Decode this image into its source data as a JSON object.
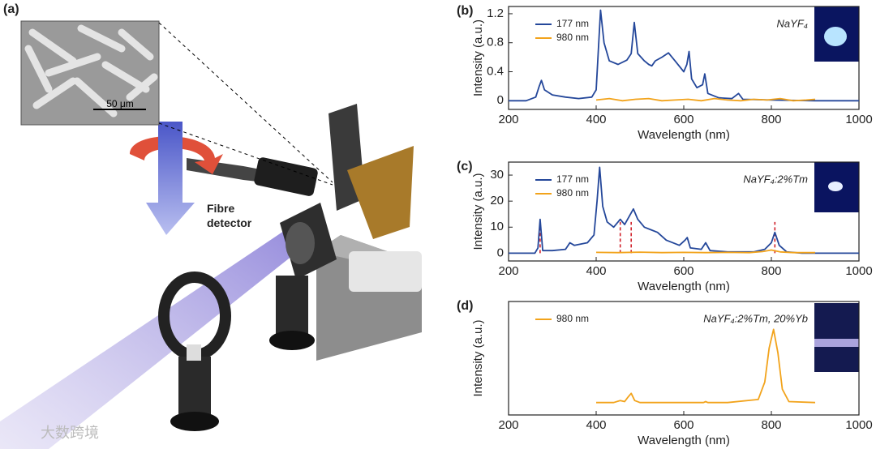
{
  "panel_a": {
    "panel_label": "(a)",
    "annotation": "Fibre detector",
    "scale_bar": "50 μm"
  },
  "watermark": "大数跨境",
  "chart_data": [
    {
      "type": "line",
      "panel_label": "(b)",
      "annotation": "NaYF₄",
      "xlabel": "Wavelength (nm)",
      "ylabel": "Intensity (a.u.)",
      "xlim": [
        200,
        1000
      ],
      "xticks": [
        200,
        400,
        600,
        800,
        1000
      ],
      "ylim": [
        -0.12,
        1.3
      ],
      "yticks": [
        0,
        0.4,
        0.8,
        1.2
      ],
      "series": [
        {
          "name": "177 nm",
          "color": "#24479a",
          "x": [
            200,
            240,
            262,
            270,
            275,
            282,
            300,
            330,
            360,
            390,
            400,
            405,
            410,
            418,
            430,
            450,
            470,
            480,
            487,
            495,
            510,
            520,
            527,
            535,
            550,
            565,
            580,
            600,
            607,
            612,
            618,
            630,
            643,
            648,
            655,
            680,
            710,
            725,
            735,
            800,
            900,
            1000
          ],
          "values": [
            0,
            0.0,
            0.05,
            0.2,
            0.28,
            0.15,
            0.08,
            0.05,
            0.03,
            0.05,
            0.15,
            0.7,
            1.25,
            0.8,
            0.55,
            0.5,
            0.56,
            0.65,
            1.08,
            0.65,
            0.55,
            0.5,
            0.48,
            0.55,
            0.6,
            0.66,
            0.55,
            0.4,
            0.5,
            0.68,
            0.3,
            0.18,
            0.22,
            0.37,
            0.1,
            0.04,
            0.03,
            0.1,
            0.02,
            0.01,
            0.0,
            0.0
          ]
        },
        {
          "name": "980 nm",
          "color": "#f2a31b",
          "x": [
            400,
            430,
            460,
            490,
            520,
            550,
            580,
            610,
            640,
            670,
            700,
            730,
            760,
            790,
            820,
            850,
            880,
            900
          ],
          "values": [
            0.01,
            0.03,
            0.0,
            0.02,
            0.03,
            0.0,
            0.01,
            0.02,
            0.0,
            0.03,
            0.01,
            0.0,
            0.02,
            0.01,
            0.03,
            0.0,
            0.01,
            0.02
          ]
        }
      ]
    },
    {
      "type": "line",
      "panel_label": "(c)",
      "annotation": "NaYF₄:2%Tm",
      "xlabel": "Wavelength (nm)",
      "ylabel": "Intensity (a.u.)",
      "xlim": [
        200,
        1000
      ],
      "xticks": [
        200,
        400,
        600,
        800,
        1000
      ],
      "ylim": [
        -3,
        35
      ],
      "yticks": [
        0,
        10,
        20,
        30
      ],
      "dashed_lines": [
        272,
        455,
        480,
        808
      ],
      "series": [
        {
          "name": "177 nm",
          "color": "#24479a",
          "x": [
            200,
            260,
            267,
            272,
            278,
            300,
            330,
            340,
            350,
            380,
            395,
            402,
            408,
            415,
            425,
            440,
            455,
            465,
            475,
            485,
            495,
            510,
            525,
            540,
            560,
            590,
            603,
            608,
            615,
            640,
            650,
            660,
            700,
            760,
            785,
            800,
            808,
            818,
            835,
            870,
            1000
          ],
          "values": [
            0,
            0,
            2,
            13,
            1,
            1,
            1.5,
            4,
            3,
            4,
            7,
            20,
            33,
            18,
            12,
            10,
            13,
            11,
            14,
            17,
            13,
            10,
            9,
            8,
            5,
            3,
            5,
            6,
            2,
            1.5,
            4,
            1,
            0.5,
            0.5,
            1.5,
            4,
            8,
            3,
            0.5,
            0,
            0
          ]
        },
        {
          "name": "980 nm",
          "color": "#f2a31b",
          "x": [
            400,
            450,
            500,
            550,
            600,
            650,
            700,
            750,
            780,
            800,
            820,
            850,
            900
          ],
          "values": [
            0.3,
            0.2,
            0.4,
            0.2,
            0.3,
            0.2,
            0.3,
            0.2,
            0.6,
            1.2,
            0.5,
            0.2,
            0.2
          ]
        }
      ]
    },
    {
      "type": "line",
      "panel_label": "(d)",
      "annotation": "NaYF₄:2%Tm, 20%Yb",
      "xlabel": "Wavelength (nm)",
      "ylabel": "Intensity (a.u.)",
      "xlim": [
        200,
        1000
      ],
      "xticks": [
        200,
        400,
        600,
        800,
        1000
      ],
      "ylim": [
        -0.1,
        1.0
      ],
      "series": [
        {
          "name": "980 nm",
          "color": "#f2a31b",
          "x": [
            400,
            440,
            455,
            465,
            472,
            480,
            488,
            500,
            600,
            645,
            650,
            655,
            700,
            770,
            785,
            795,
            805,
            815,
            825,
            840,
            900
          ],
          "values": [
            0.02,
            0.02,
            0.04,
            0.03,
            0.07,
            0.11,
            0.04,
            0.02,
            0.02,
            0.02,
            0.03,
            0.02,
            0.02,
            0.05,
            0.22,
            0.55,
            0.73,
            0.5,
            0.15,
            0.03,
            0.02
          ]
        }
      ]
    }
  ]
}
